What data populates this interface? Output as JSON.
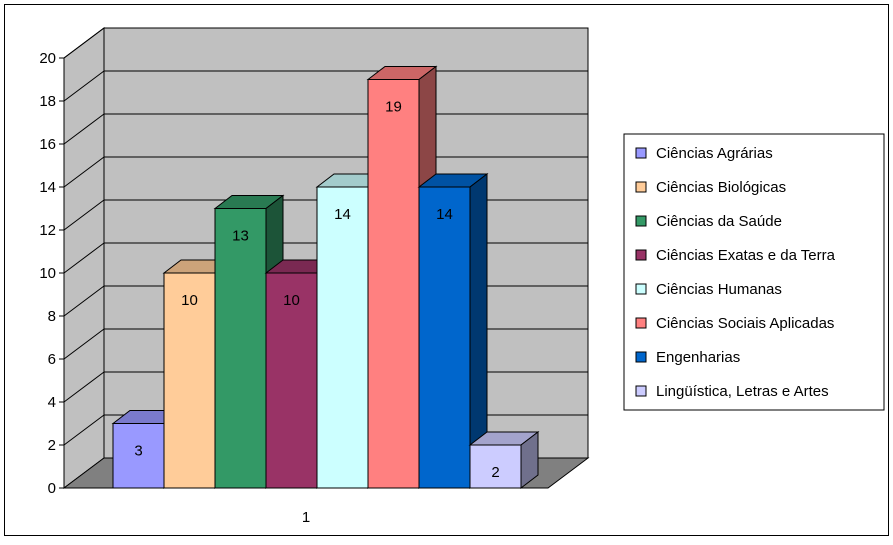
{
  "chart_data": {
    "type": "bar",
    "categories": [
      "1"
    ],
    "series": [
      {
        "name": "Ciências Agrárias",
        "values": [
          3
        ],
        "color": "#9999FF"
      },
      {
        "name": "Ciências Biológicas",
        "values": [
          10
        ],
        "color": "#FFCC99"
      },
      {
        "name": "Ciências da Saúde",
        "values": [
          13
        ],
        "color": "#339966"
      },
      {
        "name": "Ciências Exatas e da Terra",
        "values": [
          10
        ],
        "color": "#993366"
      },
      {
        "name": "Ciências Humanas",
        "values": [
          14
        ],
        "color": "#CCFFFF"
      },
      {
        "name": "Ciências Sociais Aplicadas",
        "values": [
          19
        ],
        "color": "#FF8080"
      },
      {
        "name": "Engenharias",
        "values": [
          14
        ],
        "color": "#0066CC"
      },
      {
        "name": "Lingüística, Letras e Artes",
        "values": [
          2
        ],
        "color": "#CCCCFF"
      }
    ],
    "yticks": [
      "0",
      "2",
      "4",
      "6",
      "8",
      "10",
      "12",
      "14",
      "16",
      "18",
      "20"
    ],
    "ylim": [
      0,
      20
    ],
    "grid": true,
    "legend": "right",
    "wall_color": "#C0C0C0",
    "floor_color": "#808080"
  }
}
